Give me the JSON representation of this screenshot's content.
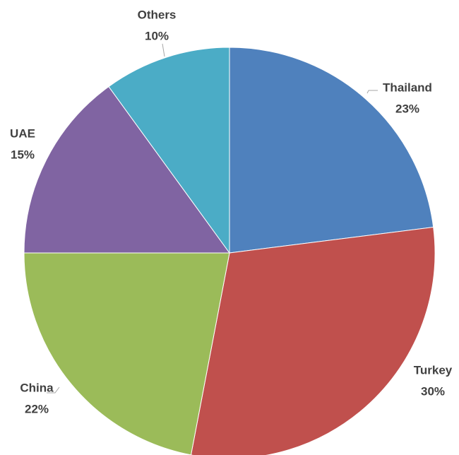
{
  "chart_data": {
    "type": "pie",
    "categories": [
      "Thailand",
      "Turkey",
      "China",
      "UAE",
      "Others"
    ],
    "values": [
      23,
      30,
      22,
      15,
      10
    ],
    "value_labels": [
      "23%",
      "30%",
      "22%",
      "15%",
      "10%"
    ],
    "colors": [
      "#4f81bd",
      "#c0504d",
      "#9bbb59",
      "#8064a2",
      "#4bacc6"
    ]
  }
}
